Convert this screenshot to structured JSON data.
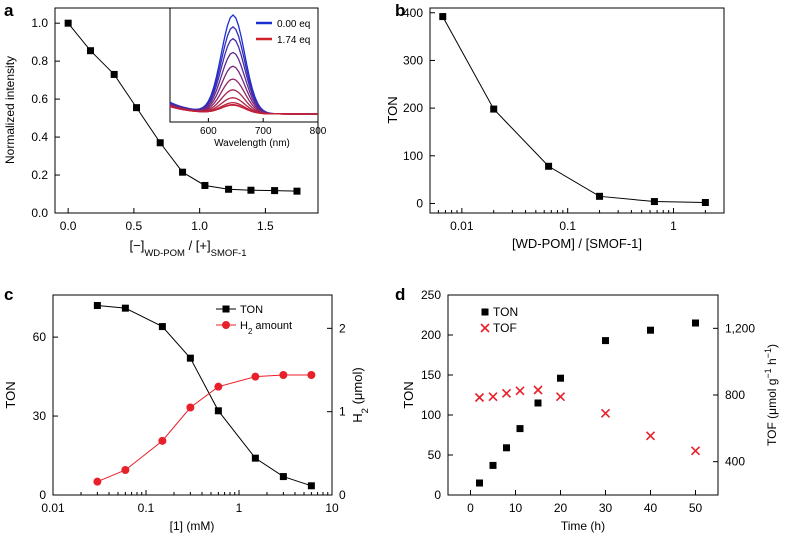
{
  "chart_data": [
    {
      "panel": "a",
      "type": "line",
      "xlabel": "[−]WD-POM / [+]SMOF-1",
      "xlabel_parts": [
        "[−]",
        "WD-POM",
        " / [+]",
        "SMOF-1"
      ],
      "ylabel": "Normalized intensity",
      "xlim": [
        -0.1,
        1.9
      ],
      "ylim": [
        0,
        1.08
      ],
      "xticks": [
        0.0,
        0.5,
        1.0,
        1.5
      ],
      "xtick_labels": [
        "0.0",
        "0.5",
        "1.0",
        "1.5"
      ],
      "yticks": [
        0.0,
        0.2,
        0.4,
        0.6,
        0.8,
        1.0
      ],
      "ytick_labels": [
        "0.0",
        "0.2",
        "0.4",
        "0.6",
        "0.8",
        "1.0"
      ],
      "x": [
        0.0,
        0.17,
        0.35,
        0.52,
        0.7,
        0.87,
        1.04,
        1.22,
        1.39,
        1.57,
        1.74
      ],
      "y": [
        1.0,
        0.855,
        0.73,
        0.555,
        0.37,
        0.215,
        0.145,
        0.125,
        0.12,
        0.118,
        0.115
      ],
      "marker": "square",
      "color": "#000000",
      "inset": {
        "xlabel": "Wavelength (nm)",
        "xlim": [
          530,
          800
        ],
        "xticks": [
          600,
          700,
          800
        ],
        "xtick_labels": [
          "600",
          "700",
          "800"
        ],
        "peak_wavelength": 645,
        "peak_fraction": [
          1.0,
          0.88,
          0.76,
          0.62,
          0.48,
          0.35,
          0.24,
          0.16,
          0.11,
          0.09,
          0.085
        ],
        "legend": [
          {
            "label": "0.00 eq",
            "color": "#1a2fd0"
          },
          {
            "label": "1.74 eq",
            "color": "#d0202a"
          }
        ]
      }
    },
    {
      "panel": "b",
      "type": "line",
      "xscale": "log",
      "xlabel": "[WD-POM] / [SMOF-1]",
      "ylabel": "TON",
      "xlim": [
        0.005,
        3
      ],
      "ylim": [
        -20,
        410
      ],
      "xticks": [
        0.01,
        0.1,
        1
      ],
      "xtick_labels": [
        "0.01",
        "0.1",
        "1"
      ],
      "yticks": [
        0,
        100,
        200,
        300,
        400
      ],
      "ytick_labels": [
        "0",
        "100",
        "200",
        "300",
        "400"
      ],
      "x": [
        0.0066,
        0.02,
        0.066,
        0.2,
        0.66,
        2.0
      ],
      "y": [
        392,
        198,
        78,
        15,
        4,
        2
      ],
      "marker": "square",
      "color": "#000000"
    },
    {
      "panel": "c",
      "type": "line",
      "xscale": "log",
      "xlabel": "[1] (mM)",
      "ylabel": "TON",
      "ylabel_right": "H2 (μmol)",
      "ylabel_right_parts": [
        "H",
        "2",
        " (μmol)"
      ],
      "xlim": [
        0.01,
        10
      ],
      "ylim": [
        0,
        76
      ],
      "ylim_right": [
        0,
        2.4
      ],
      "xticks": [
        0.01,
        0.1,
        1,
        10
      ],
      "xtick_labels": [
        "0.01",
        "0.1",
        "1",
        "10"
      ],
      "yticks": [
        0,
        30,
        60
      ],
      "ytick_labels": [
        "0",
        "30",
        "60"
      ],
      "yticks_right": [
        0,
        1,
        2
      ],
      "ytick_labels_right": [
        "0",
        "1",
        "2"
      ],
      "x": [
        0.03,
        0.06,
        0.15,
        0.3,
        0.6,
        1.5,
        3.0,
        6.0
      ],
      "series": [
        {
          "name": "TON",
          "label_parts": [
            "TON"
          ],
          "axis": "left",
          "marker": "square",
          "color": "#000000",
          "values": [
            72,
            71,
            64,
            52,
            32,
            14,
            7,
            3.5
          ]
        },
        {
          "name": "H2 amount",
          "label_parts": [
            "H",
            "2",
            " amount"
          ],
          "axis": "right",
          "marker": "circle",
          "color": "#e8202a",
          "values": [
            0.16,
            0.3,
            0.65,
            1.05,
            1.3,
            1.42,
            1.44,
            1.44
          ]
        }
      ],
      "legend": "top-right"
    },
    {
      "panel": "d",
      "type": "scatter",
      "xlabel": "Time (h)",
      "ylabel": "TON",
      "ylabel_right": "TOF (μmol g⁻¹ h⁻¹)",
      "ylabel_right_parts": [
        "TOF (μmol g",
        "−1",
        " h",
        "−1",
        ")"
      ],
      "xlim": [
        -5,
        55
      ],
      "ylim": [
        0,
        250
      ],
      "ylim_right": [
        200,
        1400
      ],
      "xticks": [
        0,
        10,
        20,
        30,
        40,
        50
      ],
      "xtick_labels": [
        "0",
        "10",
        "20",
        "30",
        "40",
        "50"
      ],
      "yticks": [
        0,
        50,
        100,
        150,
        200,
        250
      ],
      "ytick_labels": [
        "0",
        "50",
        "100",
        "150",
        "200",
        "250"
      ],
      "yticks_right": [
        400,
        800,
        1200
      ],
      "ytick_labels_right": [
        "400",
        "800",
        "1,200"
      ],
      "series": [
        {
          "name": "TON",
          "axis": "left",
          "marker": "square",
          "color": "#000000",
          "x": [
            2,
            5,
            8,
            11,
            15,
            20,
            30,
            40,
            50
          ],
          "values": [
            15,
            37,
            59,
            83,
            115,
            146,
            193,
            206,
            215
          ]
        },
        {
          "name": "TOF",
          "axis": "right",
          "marker": "x",
          "color": "#e8202a",
          "x": [
            2,
            5,
            8,
            11,
            15,
            20,
            30,
            40,
            50
          ],
          "values": [
            785,
            790,
            810,
            825,
            830,
            790,
            690,
            555,
            465
          ]
        }
      ],
      "legend": "top-left"
    }
  ],
  "panel_labels": [
    "a",
    "b",
    "c",
    "d"
  ]
}
